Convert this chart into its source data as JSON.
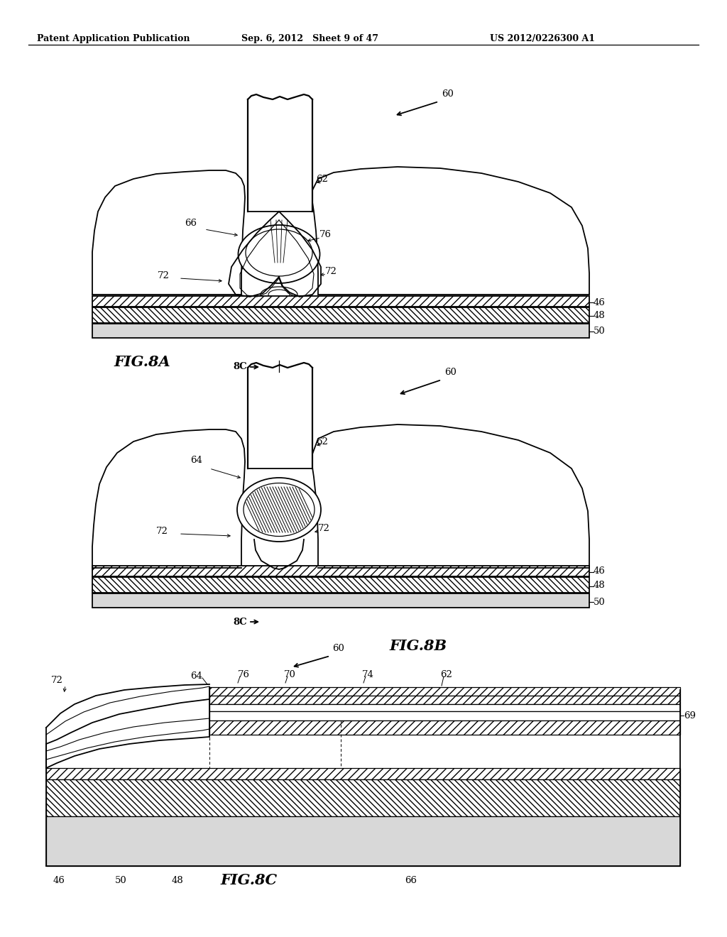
{
  "bg_color": "#ffffff",
  "header_left": "Patent Application Publication",
  "header_mid": "Sep. 6, 2012   Sheet 9 of 47",
  "header_right": "US 2012/0226300 A1",
  "fig8a": "FIG.8A",
  "fig8b": "FIG.8B",
  "fig8c": "FIG.8C"
}
